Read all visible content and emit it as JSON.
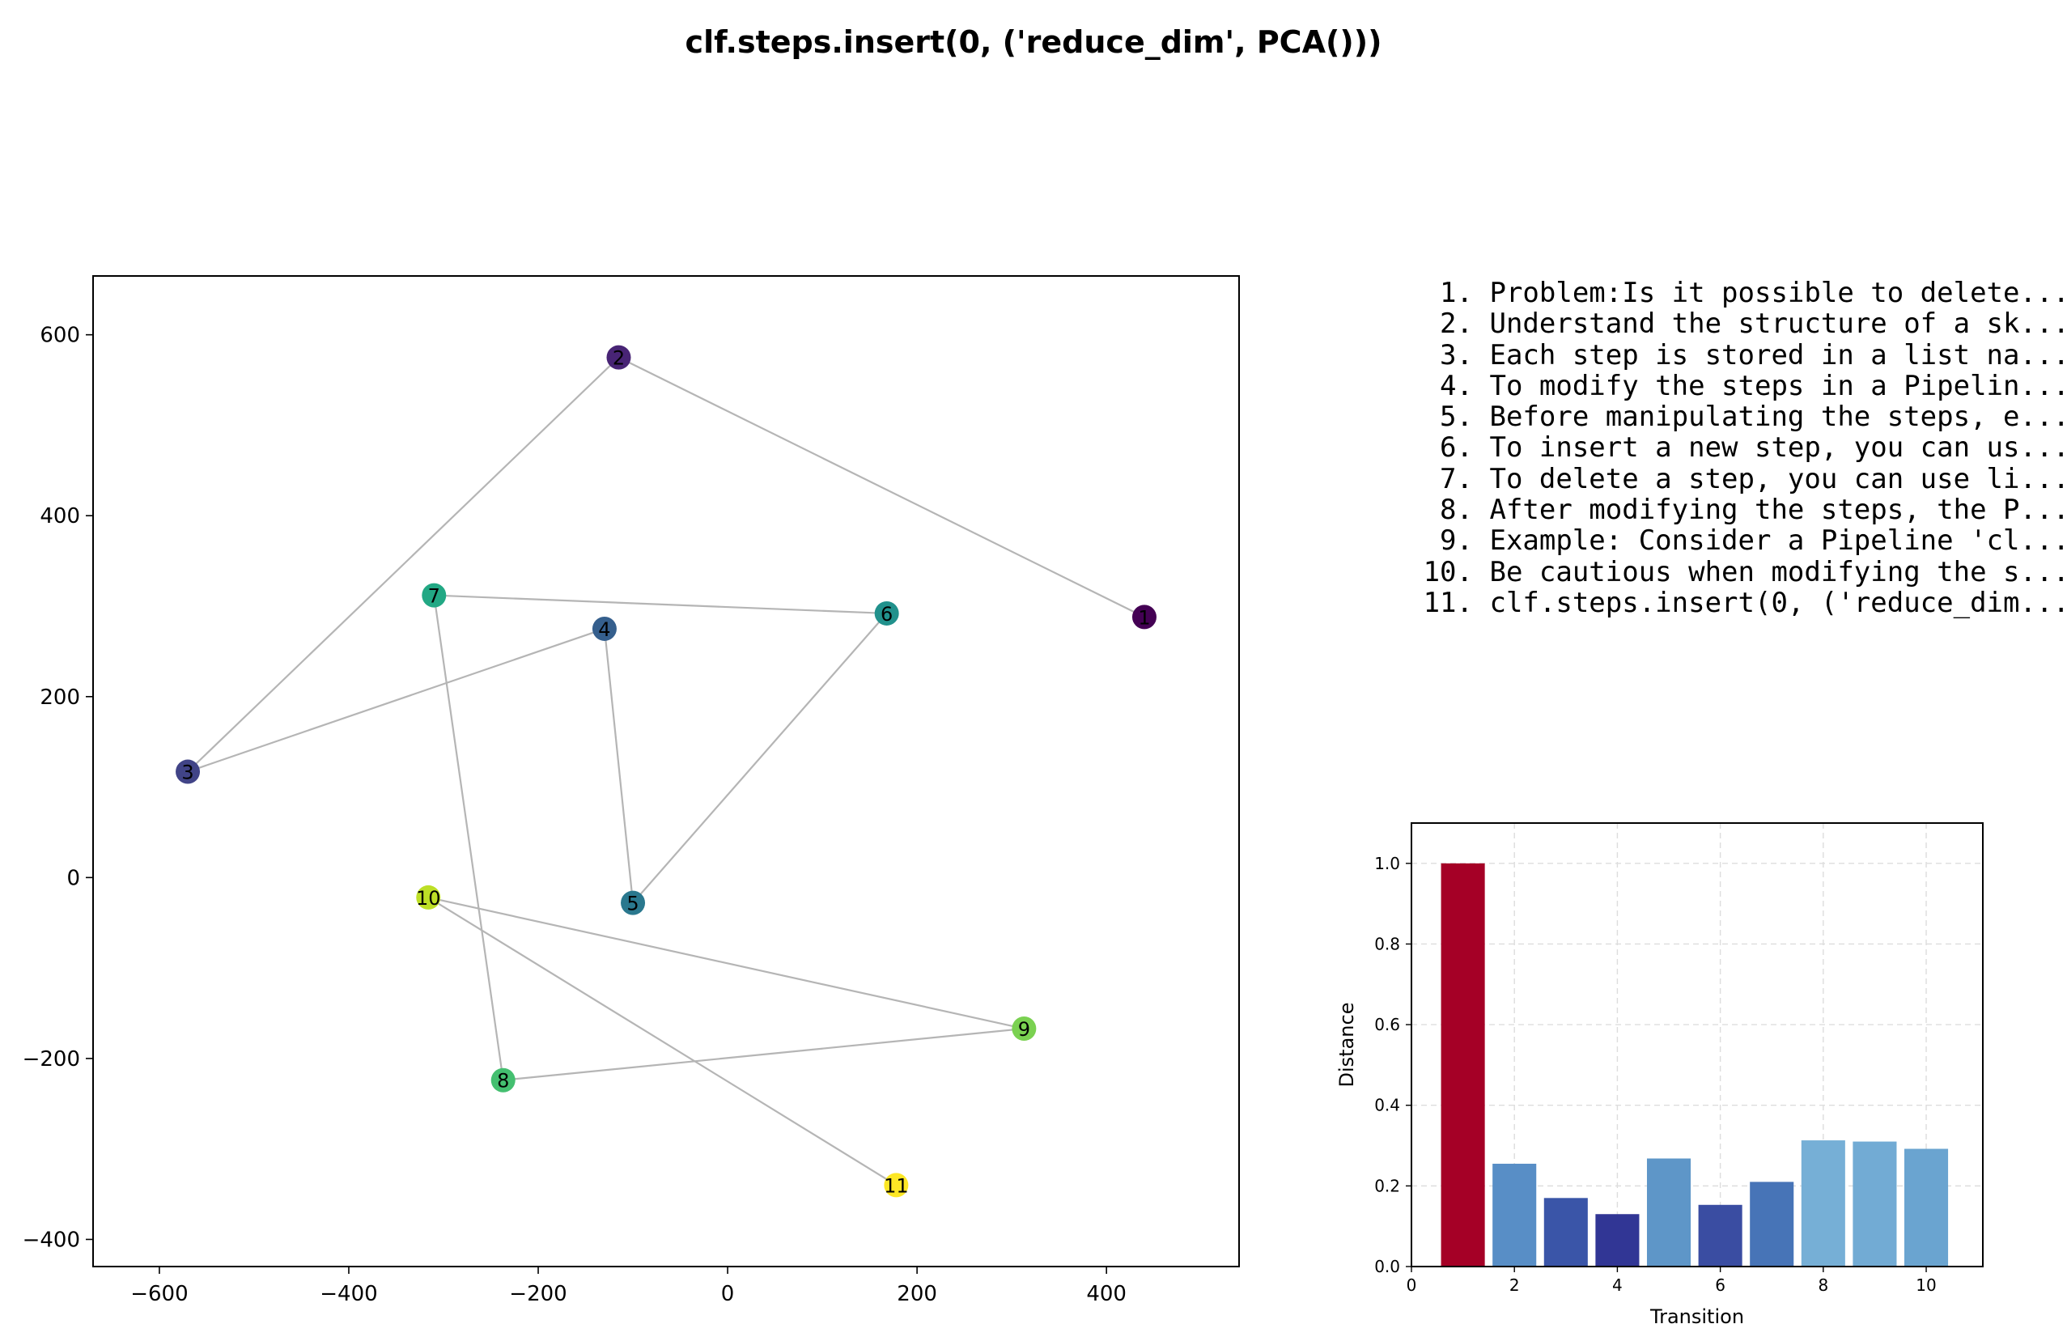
{
  "figure_title": "clf.steps.insert(0, ('reduce_dim', PCA()))",
  "steps": [
    {
      "num": "1.",
      "text": "Problem:Is it possible to delete..."
    },
    {
      "num": "2.",
      "text": "Understand the structure of a sk..."
    },
    {
      "num": "3.",
      "text": "Each step is stored in a list na..."
    },
    {
      "num": "4.",
      "text": "To modify the steps in a Pipelin..."
    },
    {
      "num": "5.",
      "text": "Before manipulating the steps, e..."
    },
    {
      "num": "6.",
      "text": "To insert a new step, you can us..."
    },
    {
      "num": "7.",
      "text": "To delete a step, you can use li..."
    },
    {
      "num": "8.",
      "text": "After modifying the steps, the P..."
    },
    {
      "num": "9.",
      "text": "Example: Consider a Pipeline 'cl..."
    },
    {
      "num": "10.",
      "text": "Be cautious when modifying the s..."
    },
    {
      "num": "11.",
      "text": "clf.steps.insert(0, ('reduce_dim..."
    }
  ],
  "chart_data": [
    {
      "type": "scatter",
      "title": "",
      "xlabel": "",
      "ylabel": "",
      "xlim": [
        -670,
        540
      ],
      "ylim": [
        -430,
        665
      ],
      "xticks": [
        -600,
        -400,
        -200,
        0,
        200,
        400
      ],
      "yticks": [
        -400,
        -200,
        0,
        200,
        400,
        600
      ],
      "connected": true,
      "line_color": "#b5b5b5",
      "points": [
        {
          "label": "1",
          "x": 440,
          "y": 288,
          "color": "#440154"
        },
        {
          "label": "2",
          "x": -115,
          "y": 575,
          "color": "#482475"
        },
        {
          "label": "3",
          "x": -570,
          "y": 117,
          "color": "#414487"
        },
        {
          "label": "4",
          "x": -130,
          "y": 275,
          "color": "#355f8d"
        },
        {
          "label": "5",
          "x": -100,
          "y": -28,
          "color": "#2a788e"
        },
        {
          "label": "6",
          "x": 168,
          "y": 292,
          "color": "#21918c"
        },
        {
          "label": "7",
          "x": -310,
          "y": 312,
          "color": "#22a884"
        },
        {
          "label": "8",
          "x": -237,
          "y": -224,
          "color": "#44bf70"
        },
        {
          "label": "9",
          "x": 313,
          "y": -167,
          "color": "#7ad151"
        },
        {
          "label": "10",
          "x": -316,
          "y": -22,
          "color": "#bddf26"
        },
        {
          "label": "11",
          "x": 178,
          "y": -340,
          "color": "#fde725"
        }
      ]
    },
    {
      "type": "bar",
      "title": "",
      "xlabel": "Transition",
      "ylabel": "Distance",
      "xlim": [
        0,
        11.1
      ],
      "ylim": [
        0,
        1.1
      ],
      "xticks": [
        0,
        2,
        4,
        6,
        8,
        10
      ],
      "yticks": [
        0.0,
        0.2,
        0.4,
        0.6,
        0.8,
        1.0
      ],
      "grid": true,
      "categories": [
        1,
        2,
        3,
        4,
        5,
        6,
        7,
        8,
        9,
        10
      ],
      "values": [
        1.0,
        0.255,
        0.17,
        0.13,
        0.268,
        0.153,
        0.21,
        0.313,
        0.31,
        0.292
      ],
      "colors": [
        "#a50026",
        "#588ec6",
        "#3a55a8",
        "#313695",
        "#5e96c8",
        "#3a4da2",
        "#4774b7",
        "#76afd6",
        "#72abd4",
        "#6aa4d0"
      ]
    }
  ]
}
